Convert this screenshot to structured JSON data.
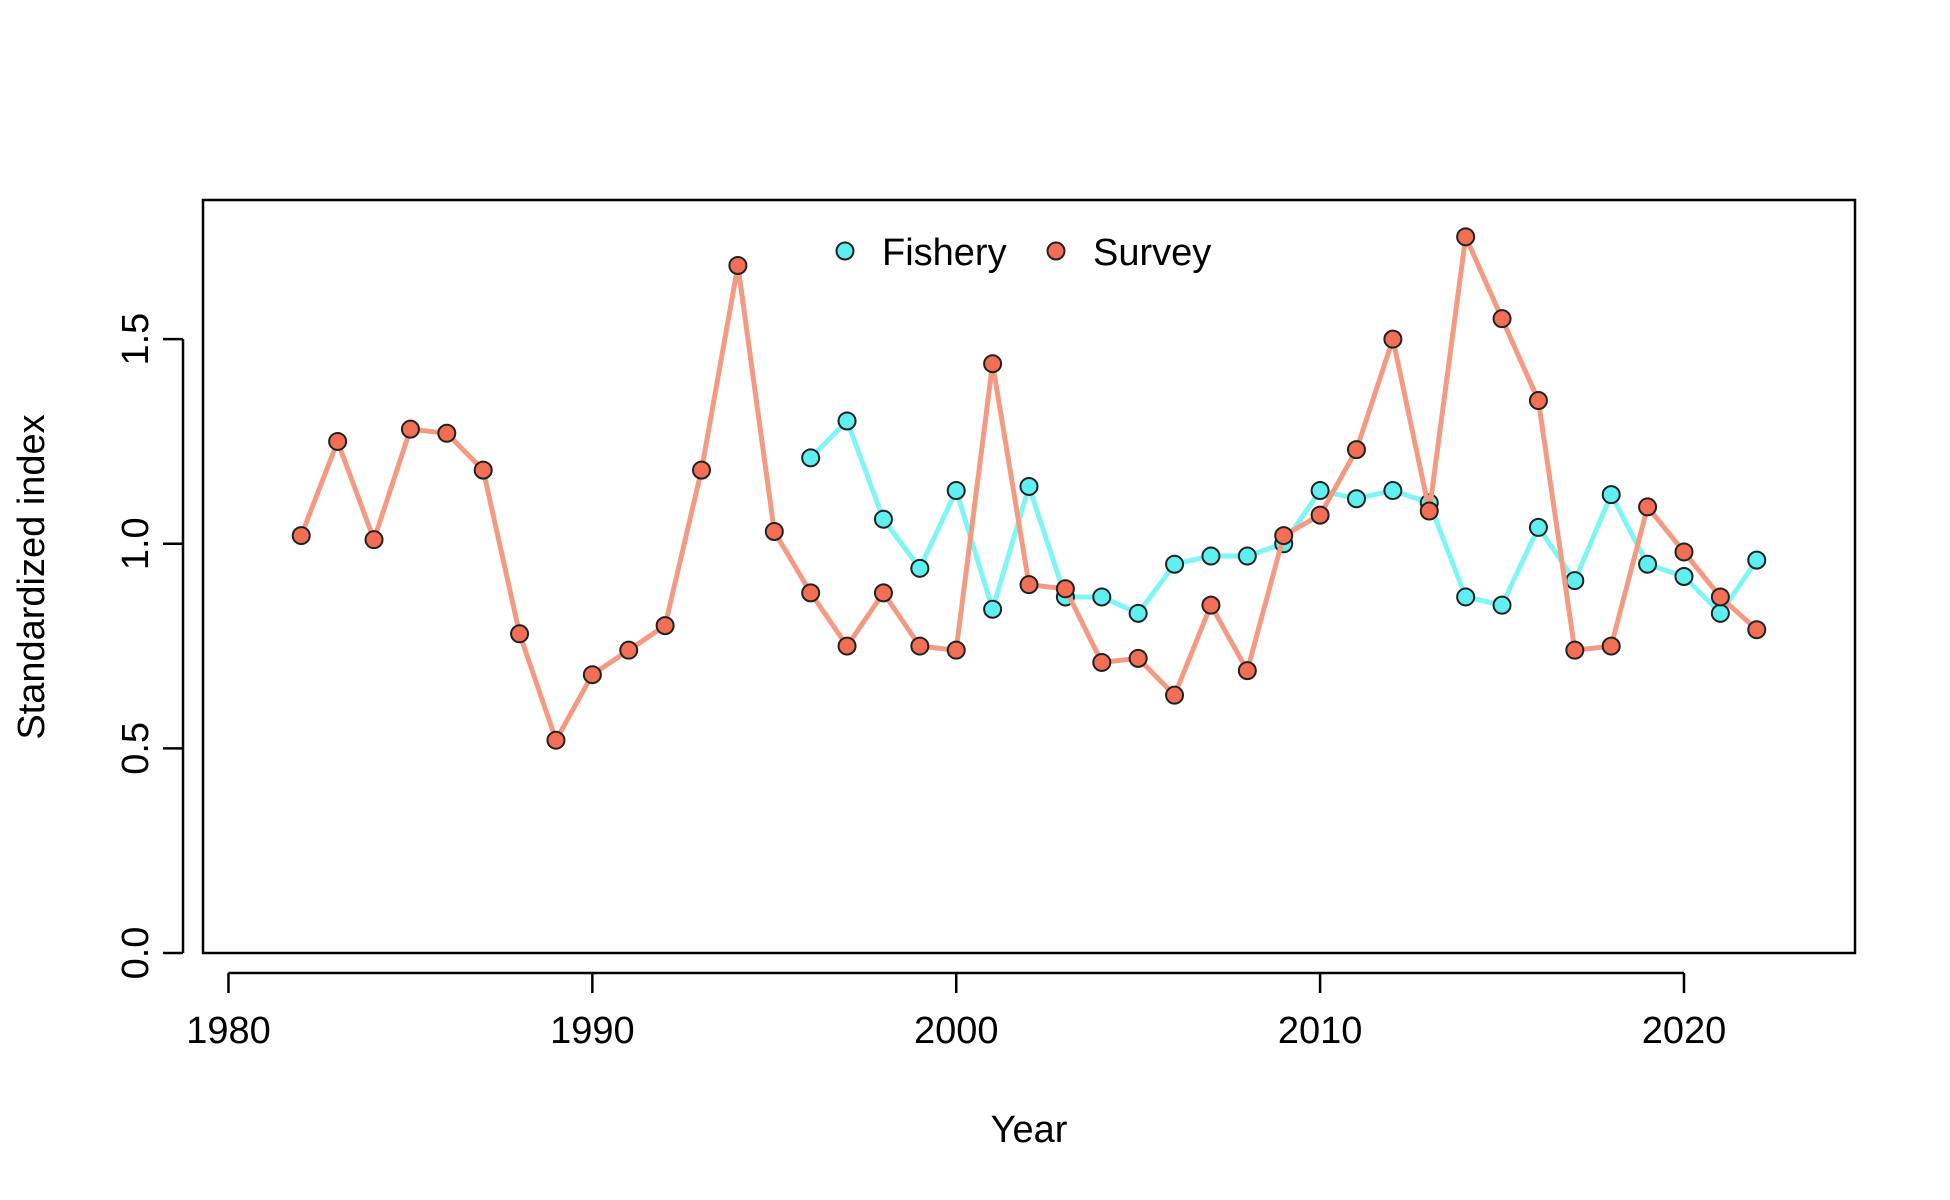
{
  "chart_data": {
    "type": "line",
    "title": "",
    "xlabel": "Year",
    "ylabel": "Standardized index",
    "xlim": [
      1979.3,
      2024.7
    ],
    "ylim": [
      0,
      1.84
    ],
    "xticks": [
      1980,
      1990,
      2000,
      2010,
      2020
    ],
    "yticks": [
      0.0,
      0.5,
      1.0,
      1.5
    ],
    "ytick_labels": [
      "0.0",
      "0.5",
      "1.0",
      "1.5"
    ],
    "grid": false,
    "legend_position": "top-center",
    "series": [
      {
        "name": "Fishery",
        "line_color": "#7ff5f5",
        "point_color": "#5ef0f0",
        "x": [
          1996,
          1997,
          1998,
          1999,
          2000,
          2001,
          2002,
          2003,
          2004,
          2005,
          2006,
          2007,
          2008,
          2009,
          2010,
          2011,
          2012,
          2013,
          2014,
          2015,
          2016,
          2017,
          2018,
          2019,
          2020,
          2021,
          2022
        ],
        "y": [
          1.21,
          1.3,
          1.06,
          0.94,
          1.13,
          0.84,
          1.14,
          0.87,
          0.87,
          0.83,
          0.95,
          0.97,
          0.97,
          1.0,
          1.13,
          1.11,
          1.13,
          1.1,
          0.87,
          0.85,
          1.04,
          0.91,
          1.12,
          0.95,
          0.92,
          0.83,
          0.96
        ]
      },
      {
        "name": "Survey",
        "line_color": "#f59a82",
        "point_color": "#f26e55",
        "x": [
          1982,
          1983,
          1984,
          1985,
          1986,
          1987,
          1988,
          1989,
          1990,
          1991,
          1992,
          1993,
          1994,
          1995,
          1996,
          1997,
          1998,
          1999,
          2000,
          2001,
          2002,
          2003,
          2004,
          2005,
          2006,
          2007,
          2008,
          2009,
          2010,
          2011,
          2012,
          2013,
          2014,
          2015,
          2016,
          2017,
          2018,
          2019,
          2020,
          2021,
          2022
        ],
        "y": [
          1.02,
          1.25,
          1.01,
          1.28,
          1.27,
          1.18,
          0.78,
          0.52,
          0.68,
          0.74,
          0.8,
          1.18,
          1.68,
          1.03,
          0.88,
          0.75,
          0.88,
          0.75,
          0.74,
          1.44,
          0.9,
          0.89,
          0.71,
          0.72,
          0.63,
          0.85,
          0.69,
          1.02,
          1.07,
          1.23,
          1.5,
          1.08,
          1.75,
          1.55,
          1.35,
          0.74,
          0.75,
          1.09,
          0.98,
          0.87,
          0.79
        ]
      }
    ]
  }
}
